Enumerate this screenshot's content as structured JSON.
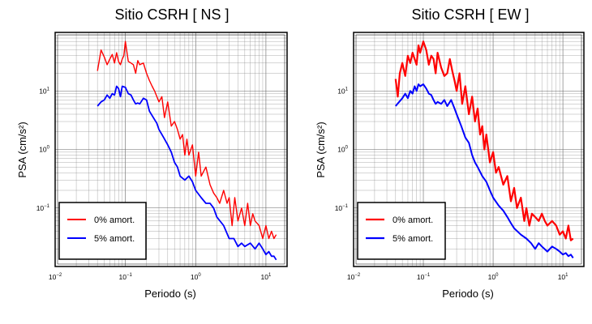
{
  "chart_data": [
    {
      "type": "line",
      "title": "Sitio CSRH [ NS ]",
      "xlabel": "Periodo (s)",
      "ylabel": "PSA (cm/s²)",
      "xscale": "log",
      "yscale": "log",
      "xlim": [
        0.01,
        20
      ],
      "ylim": [
        0.01,
        100
      ],
      "grid": true,
      "legend_position": "bottom-left",
      "series": [
        {
          "name": "0% amort.",
          "color": "#ff0000",
          "x": [
            0.04,
            0.045,
            0.05,
            0.055,
            0.06,
            0.065,
            0.07,
            0.075,
            0.08,
            0.085,
            0.09,
            0.095,
            0.1,
            0.11,
            0.12,
            0.13,
            0.14,
            0.15,
            0.16,
            0.18,
            0.2,
            0.22,
            0.24,
            0.26,
            0.28,
            0.3,
            0.33,
            0.36,
            0.4,
            0.45,
            0.5,
            0.55,
            0.6,
            0.65,
            0.7,
            0.75,
            0.8,
            0.9,
            1.0,
            1.1,
            1.2,
            1.4,
            1.6,
            1.8,
            2.0,
            2.2,
            2.5,
            2.8,
            3.0,
            3.3,
            3.6,
            4.0,
            4.5,
            5.0,
            5.5,
            6.0,
            6.5,
            7.0,
            8.0,
            9.0,
            10.0,
            11.0,
            12.0,
            13.0,
            14.0
          ],
          "y": [
            22,
            50,
            38,
            28,
            35,
            42,
            30,
            45,
            32,
            28,
            35,
            40,
            70,
            32,
            30,
            28,
            20,
            33,
            28,
            30,
            20,
            15,
            12,
            10,
            8,
            6.5,
            8,
            3.5,
            6.5,
            2.5,
            3,
            2.2,
            1.5,
            1.8,
            0.8,
            1.5,
            0.8,
            1.2,
            0.35,
            0.9,
            0.35,
            0.5,
            0.25,
            0.18,
            0.15,
            0.12,
            0.2,
            0.12,
            0.15,
            0.05,
            0.15,
            0.06,
            0.1,
            0.05,
            0.12,
            0.05,
            0.08,
            0.06,
            0.05,
            0.03,
            0.05,
            0.03,
            0.04,
            0.03,
            0.035
          ]
        },
        {
          "name": "5% amort.",
          "color": "#0000ff",
          "x": [
            0.04,
            0.045,
            0.05,
            0.055,
            0.06,
            0.065,
            0.07,
            0.075,
            0.08,
            0.085,
            0.09,
            0.1,
            0.11,
            0.12,
            0.13,
            0.14,
            0.15,
            0.16,
            0.18,
            0.2,
            0.22,
            0.25,
            0.28,
            0.3,
            0.35,
            0.4,
            0.45,
            0.5,
            0.55,
            0.6,
            0.7,
            0.8,
            0.9,
            1.0,
            1.2,
            1.4,
            1.6,
            1.8,
            2.0,
            2.5,
            3.0,
            3.5,
            4.0,
            4.5,
            5.0,
            6.0,
            7.0,
            8.0,
            9.0,
            10.0,
            11.0,
            12.0,
            13.0,
            14.0
          ],
          "y": [
            5.5,
            6.5,
            7,
            8.5,
            7.5,
            9,
            8.5,
            12,
            11,
            8,
            12,
            11.5,
            9,
            8.5,
            7,
            6,
            6.2,
            6,
            7.5,
            7,
            4.5,
            3.5,
            2.8,
            2.2,
            1.6,
            1.2,
            0.9,
            0.6,
            0.5,
            0.35,
            0.3,
            0.35,
            0.28,
            0.2,
            0.15,
            0.12,
            0.12,
            0.1,
            0.07,
            0.05,
            0.03,
            0.03,
            0.022,
            0.025,
            0.022,
            0.025,
            0.02,
            0.025,
            0.02,
            0.016,
            0.018,
            0.015,
            0.015,
            0.013
          ]
        }
      ]
    },
    {
      "type": "line",
      "title": "Sitio CSRH [ EW ]",
      "xlabel": "Periodo (s)",
      "ylabel": "PSA (cm/s²)",
      "xscale": "log",
      "yscale": "log",
      "xlim": [
        0.01,
        20
      ],
      "ylim": [
        0.01,
        100
      ],
      "grid": true,
      "legend_position": "bottom-left",
      "series": [
        {
          "name": "0% amort.",
          "color": "#ff0000",
          "x": [
            0.04,
            0.043,
            0.046,
            0.05,
            0.055,
            0.06,
            0.065,
            0.07,
            0.075,
            0.08,
            0.085,
            0.09,
            0.1,
            0.11,
            0.12,
            0.13,
            0.14,
            0.15,
            0.16,
            0.18,
            0.2,
            0.22,
            0.24,
            0.26,
            0.28,
            0.3,
            0.33,
            0.36,
            0.4,
            0.45,
            0.5,
            0.55,
            0.6,
            0.65,
            0.7,
            0.75,
            0.8,
            0.9,
            1.0,
            1.1,
            1.2,
            1.4,
            1.6,
            1.8,
            2.0,
            2.2,
            2.5,
            2.8,
            3.0,
            3.3,
            3.6,
            4.0,
            4.5,
            5.0,
            5.5,
            6.0,
            7.0,
            8.0,
            9.0,
            10.0,
            11.0,
            12.0,
            13.0,
            14.0
          ],
          "y": [
            16,
            8,
            20,
            30,
            18,
            40,
            30,
            45,
            35,
            28,
            60,
            45,
            70,
            50,
            28,
            40,
            35,
            20,
            45,
            25,
            18,
            20,
            35,
            22,
            15,
            10,
            20,
            6,
            12,
            4,
            8,
            3,
            5,
            1.8,
            2.5,
            1,
            1.8,
            0.6,
            0.9,
            0.4,
            0.5,
            0.25,
            0.35,
            0.13,
            0.22,
            0.1,
            0.15,
            0.06,
            0.1,
            0.05,
            0.08,
            0.07,
            0.06,
            0.08,
            0.06,
            0.05,
            0.06,
            0.05,
            0.035,
            0.04,
            0.03,
            0.05,
            0.028,
            0.03
          ]
        },
        {
          "name": "5% amort.",
          "color": "#0000ff",
          "x": [
            0.04,
            0.045,
            0.05,
            0.055,
            0.06,
            0.065,
            0.07,
            0.075,
            0.08,
            0.085,
            0.09,
            0.1,
            0.11,
            0.12,
            0.13,
            0.14,
            0.15,
            0.16,
            0.18,
            0.2,
            0.22,
            0.25,
            0.28,
            0.3,
            0.35,
            0.4,
            0.45,
            0.5,
            0.55,
            0.6,
            0.7,
            0.8,
            0.9,
            1.0,
            1.2,
            1.4,
            1.6,
            1.8,
            2.0,
            2.5,
            3.0,
            3.5,
            4.0,
            4.5,
            5.0,
            6.0,
            7.0,
            8.0,
            9.0,
            10.0,
            11.0,
            12.0,
            13.0,
            14.0
          ],
          "y": [
            5.5,
            6.5,
            7.5,
            9,
            7.5,
            10,
            9,
            12,
            10,
            13,
            12,
            13,
            11,
            9,
            8.5,
            7,
            6,
            6.5,
            6,
            7,
            5.5,
            7,
            5,
            4,
            2.5,
            1.6,
            1.3,
            0.8,
            0.6,
            0.5,
            0.35,
            0.28,
            0.2,
            0.15,
            0.11,
            0.09,
            0.07,
            0.055,
            0.045,
            0.035,
            0.03,
            0.025,
            0.02,
            0.025,
            0.022,
            0.018,
            0.022,
            0.02,
            0.018,
            0.016,
            0.017,
            0.015,
            0.016,
            0.014
          ]
        }
      ]
    }
  ]
}
